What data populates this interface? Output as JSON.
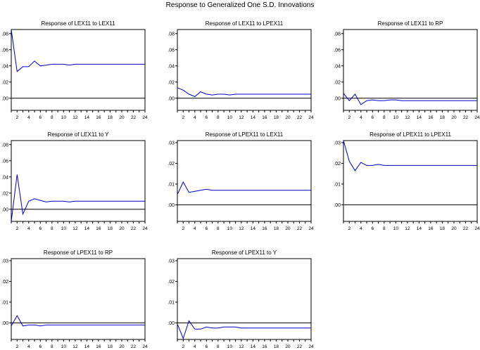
{
  "figure_title": "Response to Generalized One S.D. Innovations",
  "line_color": "#0000cc",
  "x_tick_labels": [
    "2",
    "4",
    "6",
    "8",
    "10",
    "12",
    "14",
    "16",
    "18",
    "20",
    "22",
    "24"
  ],
  "chart_data": [
    {
      "type": "line",
      "title": "Response of LEX11 to LEX11",
      "x": [
        1,
        2,
        3,
        4,
        5,
        6,
        7,
        8,
        9,
        10,
        11,
        12,
        13,
        14,
        15,
        16,
        17,
        18,
        19,
        20,
        21,
        22,
        23,
        24
      ],
      "ylim": [
        -0.015,
        0.085
      ],
      "yticks": [
        0.0,
        0.02,
        0.04,
        0.06,
        0.08
      ],
      "ytick_labels": [
        ".00",
        ".02",
        ".04",
        ".06",
        ".08"
      ],
      "series": [
        {
          "values": [
            0.085,
            0.033,
            0.039,
            0.039,
            0.046,
            0.04,
            0.041,
            0.042,
            0.042,
            0.042,
            0.041,
            0.042,
            0.042,
            0.042,
            0.042,
            0.042,
            0.042,
            0.042,
            0.042,
            0.042,
            0.042,
            0.042,
            0.042,
            0.042
          ]
        }
      ]
    },
    {
      "type": "line",
      "title": "Response of LEX11 to LPEX11",
      "x": [
        1,
        2,
        3,
        4,
        5,
        6,
        7,
        8,
        9,
        10,
        11,
        12,
        13,
        14,
        15,
        16,
        17,
        18,
        19,
        20,
        21,
        22,
        23,
        24
      ],
      "ylim": [
        -0.015,
        0.085
      ],
      "yticks": [
        0.0,
        0.02,
        0.04,
        0.06,
        0.08
      ],
      "ytick_labels": [
        ".00",
        ".02",
        ".04",
        ".06",
        ".08"
      ],
      "series": [
        {
          "values": [
            0.013,
            0.01,
            0.005,
            0.002,
            0.008,
            0.005,
            0.004,
            0.005,
            0.005,
            0.004,
            0.005,
            0.005,
            0.005,
            0.005,
            0.005,
            0.005,
            0.005,
            0.005,
            0.005,
            0.005,
            0.005,
            0.005,
            0.005,
            0.005
          ]
        }
      ]
    },
    {
      "type": "line",
      "title": "Response of LEX11 to RP",
      "x": [
        1,
        2,
        3,
        4,
        5,
        6,
        7,
        8,
        9,
        10,
        11,
        12,
        13,
        14,
        15,
        16,
        17,
        18,
        19,
        20,
        21,
        22,
        23,
        24
      ],
      "ylim": [
        -0.015,
        0.085
      ],
      "yticks": [
        0.0,
        0.02,
        0.04,
        0.06,
        0.08
      ],
      "ytick_labels": [
        ".00",
        ".02",
        ".04",
        ".06",
        ".08"
      ],
      "series": [
        {
          "values": [
            0.006,
            -0.003,
            0.005,
            -0.008,
            -0.003,
            -0.002,
            -0.003,
            -0.003,
            -0.002,
            -0.002,
            -0.003,
            -0.003,
            -0.003,
            -0.003,
            -0.003,
            -0.003,
            -0.003,
            -0.003,
            -0.003,
            -0.003,
            -0.003,
            -0.003,
            -0.003,
            -0.003
          ]
        }
      ]
    },
    {
      "type": "line",
      "title": "Response of LEX11 to Y",
      "x": [
        1,
        2,
        3,
        4,
        5,
        6,
        7,
        8,
        9,
        10,
        11,
        12,
        13,
        14,
        15,
        16,
        17,
        18,
        19,
        20,
        21,
        22,
        23,
        24
      ],
      "ylim": [
        -0.015,
        0.085
      ],
      "yticks": [
        0.0,
        0.02,
        0.04,
        0.06,
        0.08
      ],
      "ytick_labels": [
        ".00",
        ".02",
        ".04",
        ".06",
        ".08"
      ],
      "series": [
        {
          "values": [
            -0.015,
            0.043,
            -0.006,
            0.01,
            0.013,
            0.011,
            0.009,
            0.01,
            0.01,
            0.01,
            0.009,
            0.01,
            0.01,
            0.01,
            0.01,
            0.01,
            0.01,
            0.01,
            0.01,
            0.01,
            0.01,
            0.01,
            0.01,
            0.01
          ]
        }
      ]
    },
    {
      "type": "line",
      "title": "Response of LPEX11 to LEX11",
      "x": [
        1,
        2,
        3,
        4,
        5,
        6,
        7,
        8,
        9,
        10,
        11,
        12,
        13,
        14,
        15,
        16,
        17,
        18,
        19,
        20,
        21,
        22,
        23,
        24
      ],
      "ylim": [
        -0.008,
        0.031
      ],
      "yticks": [
        0.0,
        0.01,
        0.02,
        0.03
      ],
      "ytick_labels": [
        ".00",
        ".01",
        ".02",
        ".03"
      ],
      "series": [
        {
          "values": [
            0.005,
            0.011,
            0.006,
            0.0065,
            0.007,
            0.0075,
            0.007,
            0.007,
            0.007,
            0.007,
            0.007,
            0.007,
            0.007,
            0.007,
            0.007,
            0.007,
            0.007,
            0.007,
            0.007,
            0.007,
            0.007,
            0.007,
            0.007,
            0.007
          ]
        }
      ]
    },
    {
      "type": "line",
      "title": "Response of LPEX11 to LPEX11",
      "x": [
        1,
        2,
        3,
        4,
        5,
        6,
        7,
        8,
        9,
        10,
        11,
        12,
        13,
        14,
        15,
        16,
        17,
        18,
        19,
        20,
        21,
        22,
        23,
        24
      ],
      "ylim": [
        -0.008,
        0.031
      ],
      "yticks": [
        0.0,
        0.01,
        0.02,
        0.03
      ],
      "ytick_labels": [
        ".00",
        ".01",
        ".02",
        ".03"
      ],
      "series": [
        {
          "values": [
            0.031,
            0.021,
            0.0165,
            0.0205,
            0.019,
            0.019,
            0.0195,
            0.019,
            0.019,
            0.019,
            0.019,
            0.019,
            0.019,
            0.019,
            0.019,
            0.019,
            0.019,
            0.019,
            0.019,
            0.019,
            0.019,
            0.019,
            0.019,
            0.019
          ]
        }
      ]
    },
    {
      "type": "line",
      "title": "Response of LPEX11 to RP",
      "x": [
        1,
        2,
        3,
        4,
        5,
        6,
        7,
        8,
        9,
        10,
        11,
        12,
        13,
        14,
        15,
        16,
        17,
        18,
        19,
        20,
        21,
        22,
        23,
        24
      ],
      "ylim": [
        -0.008,
        0.031
      ],
      "yticks": [
        0.0,
        0.01,
        0.02,
        0.03
      ],
      "ytick_labels": [
        ".00",
        ".01",
        ".02",
        ".03"
      ],
      "series": [
        {
          "values": [
            -0.0015,
            0.0035,
            -0.0015,
            -0.001,
            -0.001,
            -0.0015,
            -0.001,
            -0.001,
            -0.001,
            -0.001,
            -0.001,
            -0.001,
            -0.001,
            -0.001,
            -0.001,
            -0.001,
            -0.001,
            -0.001,
            -0.001,
            -0.001,
            -0.001,
            -0.001,
            -0.001,
            -0.001
          ]
        }
      ]
    },
    {
      "type": "line",
      "title": "Response of LPEX11 to Y",
      "x": [
        1,
        2,
        3,
        4,
        5,
        6,
        7,
        8,
        9,
        10,
        11,
        12,
        13,
        14,
        15,
        16,
        17,
        18,
        19,
        20,
        21,
        22,
        23,
        24
      ],
      "ylim": [
        -0.008,
        0.031
      ],
      "yticks": [
        0.0,
        0.01,
        0.02,
        0.03
      ],
      "ytick_labels": [
        ".00",
        ".01",
        ".02",
        ".03"
      ],
      "series": [
        {
          "values": [
            -0.0005,
            -0.0075,
            0.001,
            -0.003,
            -0.003,
            -0.002,
            -0.0025,
            -0.0025,
            -0.002,
            -0.002,
            -0.002,
            -0.0025,
            -0.0025,
            -0.0025,
            -0.0025,
            -0.0025,
            -0.0025,
            -0.0025,
            -0.0025,
            -0.0025,
            -0.0025,
            -0.0025,
            -0.0025,
            -0.0025
          ]
        }
      ]
    }
  ]
}
